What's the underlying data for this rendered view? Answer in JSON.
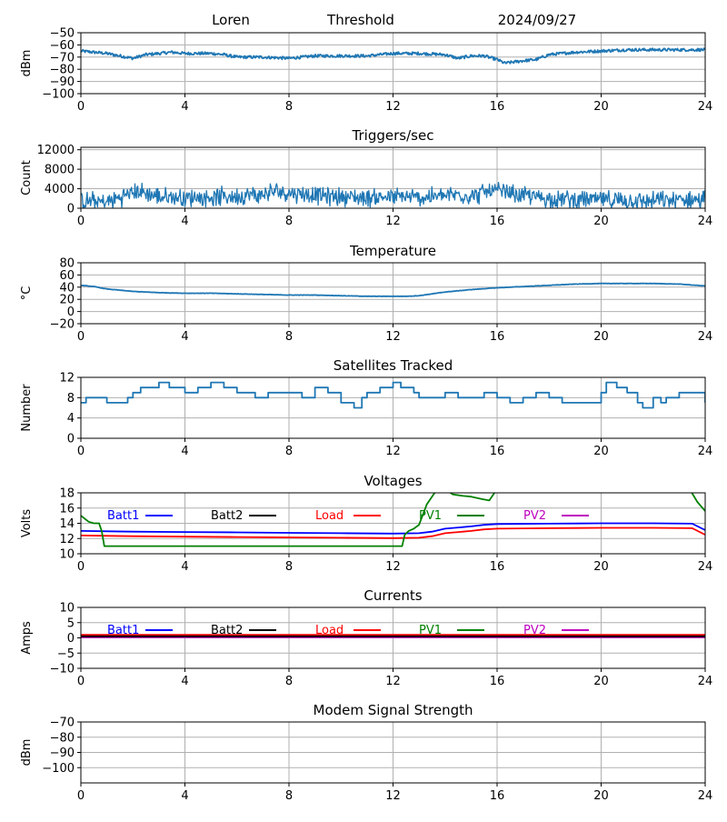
{
  "header": {
    "station": "Loren",
    "mode": "Threshold",
    "date": "2024/09/27"
  },
  "colors": {
    "line": "#1f77b4",
    "grid": "#b0b0b0",
    "batt1": "#0000ff",
    "batt2": "#000000",
    "load": "#ff0000",
    "pv1": "#008000",
    "pv2": "#bf00bf"
  },
  "chart_data": [
    {
      "type": "line",
      "title": "",
      "ylabel": "dBm",
      "xlim": [
        0,
        24
      ],
      "xticks": [
        0,
        4,
        8,
        12,
        16,
        20,
        24
      ],
      "ylim": [
        -100,
        -50
      ],
      "yticks": [
        -100,
        -90,
        -80,
        -70,
        -60,
        -50
      ],
      "grid": true,
      "noise": 1.2,
      "series": [
        {
          "color": "#1f77b4",
          "x": [
            0,
            1,
            1.5,
            2,
            2.5,
            3,
            3.5,
            4,
            5,
            5.5,
            6,
            7,
            8,
            9,
            10,
            11,
            12,
            13,
            14,
            14.5,
            15,
            15.5,
            16,
            16.3,
            17,
            17.5,
            18,
            19,
            20,
            21,
            22,
            23,
            24
          ],
          "y": [
            -65,
            -67,
            -69,
            -71,
            -68,
            -67,
            -66,
            -67,
            -67,
            -68,
            -70,
            -70,
            -71,
            -69,
            -69,
            -69,
            -67,
            -67,
            -68,
            -71,
            -69,
            -69,
            -72,
            -75,
            -73,
            -72,
            -68,
            -66,
            -65,
            -64,
            -64,
            -64,
            -64
          ]
        }
      ]
    },
    {
      "type": "line",
      "title": "Triggers/sec",
      "ylabel": "Count",
      "xlim": [
        0,
        24
      ],
      "xticks": [
        0,
        4,
        8,
        12,
        16,
        20,
        24
      ],
      "ylim": [
        0,
        12500
      ],
      "yticks": [
        0,
        4000,
        8000,
        12000
      ],
      "grid": true,
      "noise": 1400,
      "clampMin": 0,
      "series": [
        {
          "color": "#1f77b4",
          "x": [
            0,
            1,
            1.8,
            2.2,
            3,
            4,
            5,
            6,
            7,
            7.5,
            8,
            8.5,
            9,
            10,
            11,
            12,
            13,
            14,
            14.5,
            15,
            15.5,
            16,
            17,
            18,
            19,
            20,
            21,
            22,
            23,
            24
          ],
          "y": [
            1500,
            1200,
            2800,
            3500,
            2300,
            2200,
            2300,
            2500,
            2800,
            3500,
            3200,
            3000,
            2600,
            2400,
            2200,
            2300,
            2200,
            2500,
            2900,
            2400,
            3300,
            3500,
            2600,
            2000,
            1800,
            1700,
            1600,
            1500,
            1700,
            1800
          ]
        }
      ]
    },
    {
      "type": "line",
      "title": "Temperature",
      "ylabel": "°C",
      "xlim": [
        0,
        24
      ],
      "xticks": [
        0,
        4,
        8,
        12,
        16,
        20,
        24
      ],
      "ylim": [
        -20,
        80
      ],
      "yticks": [
        -20,
        0,
        20,
        40,
        60,
        80
      ],
      "grid": true,
      "noise": 0.3,
      "series": [
        {
          "color": "#1f77b4",
          "x": [
            0,
            0.5,
            1,
            2,
            3,
            4,
            5,
            6,
            7,
            8,
            9,
            10,
            11,
            12,
            12.5,
            13,
            13.5,
            14,
            15,
            16,
            17,
            18,
            19,
            20,
            21,
            22,
            23,
            24
          ],
          "y": [
            43,
            41,
            37,
            33,
            31,
            30,
            30,
            29,
            28,
            27,
            27,
            26,
            25,
            25,
            25,
            26,
            29,
            32,
            36,
            39,
            41,
            43,
            45,
            46,
            46,
            46,
            45,
            42
          ]
        }
      ]
    },
    {
      "type": "line",
      "title": "Satellites Tracked",
      "ylabel": "Number",
      "xlim": [
        0,
        24
      ],
      "xticks": [
        0,
        4,
        8,
        12,
        16,
        20,
        24
      ],
      "ylim": [
        0,
        12
      ],
      "yticks": [
        0,
        4,
        8,
        12
      ],
      "grid": true,
      "step": true,
      "series": [
        {
          "color": "#1f77b4",
          "x": [
            0,
            0.2,
            0.6,
            1,
            1.4,
            1.8,
            2,
            2.3,
            2.5,
            3,
            3.4,
            3.6,
            4,
            4.5,
            5,
            5.5,
            6,
            6.5,
            6.7,
            7.2,
            8,
            8.5,
            9,
            9.5,
            10,
            10.5,
            10.8,
            11,
            11.5,
            12,
            12.3,
            12.8,
            13,
            13.5,
            14,
            14.5,
            15,
            15.5,
            16,
            16.5,
            17,
            17.5,
            18,
            18.5,
            19,
            19.5,
            20,
            20.2,
            20.6,
            21,
            21.4,
            21.6,
            22,
            22.3,
            22.5,
            23,
            23.8,
            24
          ],
          "y": [
            7,
            8,
            8,
            7,
            7,
            8,
            9,
            10,
            10,
            11,
            10,
            10,
            9,
            10,
            11,
            10,
            9,
            9,
            8,
            9,
            9,
            8,
            10,
            9,
            7,
            6,
            8,
            9,
            10,
            11,
            10,
            9,
            8,
            8,
            9,
            8,
            8,
            9,
            8,
            7,
            8,
            9,
            8,
            7,
            7,
            7,
            9,
            11,
            10,
            9,
            7,
            6,
            8,
            7,
            8,
            9,
            9,
            7
          ]
        }
      ]
    },
    {
      "type": "line",
      "title": "Voltages",
      "ylabel": "Volts",
      "xlim": [
        0,
        24
      ],
      "xticks": [
        0,
        4,
        8,
        12,
        16,
        20,
        24
      ],
      "ylim": [
        10,
        18
      ],
      "yticks": [
        10,
        12,
        14,
        16,
        18
      ],
      "grid": true,
      "legend": [
        "Batt1",
        "Batt2",
        "Load",
        "PV1",
        "PV2"
      ],
      "series": [
        {
          "name": "Batt1",
          "color": "#0000ff",
          "x": [
            0,
            2,
            4,
            6,
            8,
            10,
            12,
            13,
            13.5,
            14,
            15,
            15.5,
            16,
            18,
            20,
            22,
            23.5,
            24
          ],
          "y": [
            13,
            12.9,
            12.85,
            12.8,
            12.75,
            12.7,
            12.65,
            12.7,
            12.9,
            13.3,
            13.6,
            13.8,
            13.9,
            13.95,
            14,
            14,
            13.95,
            13.1
          ]
        },
        {
          "name": "Load",
          "color": "#ff0000",
          "x": [
            0,
            2,
            4,
            6,
            8,
            10,
            12,
            13,
            13.5,
            14,
            15,
            15.5,
            16,
            18,
            20,
            22,
            23.5,
            24
          ],
          "y": [
            12.4,
            12.3,
            12.25,
            12.2,
            12.15,
            12.1,
            12.05,
            12.1,
            12.3,
            12.7,
            13,
            13.2,
            13.3,
            13.35,
            13.4,
            13.4,
            13.35,
            12.5
          ]
        },
        {
          "name": "PV1",
          "color": "#008000",
          "clip": true,
          "x": [
            0,
            0.3,
            0.5,
            0.6,
            0.7,
            0.8,
            0.9,
            12.35,
            12.45,
            12.6,
            12.8,
            13,
            13.3,
            13.6,
            14,
            14.3,
            14.7,
            15,
            15.4,
            15.7,
            16,
            23.4,
            23.7,
            24
          ],
          "y": [
            15,
            14.2,
            14,
            14,
            14,
            13,
            11,
            11,
            12.5,
            13,
            13.3,
            13.8,
            16.5,
            18,
            18.5,
            17.8,
            17.6,
            17.5,
            17.2,
            17,
            18.5,
            18.5,
            16.8,
            15.6
          ]
        }
      ]
    },
    {
      "type": "line",
      "title": "Currents",
      "ylabel": "Amps",
      "xlim": [
        0,
        24
      ],
      "xticks": [
        0,
        4,
        8,
        12,
        16,
        20,
        24
      ],
      "ylim": [
        -10,
        10
      ],
      "yticks": [
        -10,
        -5,
        0,
        5,
        10
      ],
      "grid": true,
      "legend": [
        "Batt1",
        "Batt2",
        "Load",
        "PV1",
        "PV2"
      ],
      "series": [
        {
          "name": "Load",
          "color": "#ff0000",
          "x": [
            0,
            24
          ],
          "y": [
            1.0,
            1.0
          ]
        },
        {
          "name": "PV2",
          "color": "#bf00bf",
          "x": [
            0,
            24
          ],
          "y": [
            0.2,
            0.2
          ]
        },
        {
          "name": "Batt2",
          "color": "#000000",
          "x": [
            0,
            24
          ],
          "y": [
            0.5,
            0.5
          ]
        }
      ]
    },
    {
      "type": "line",
      "title": "Modem Signal Strength",
      "ylabel": "dBm",
      "xlim": [
        0,
        24
      ],
      "xticks": [
        0,
        4,
        8,
        12,
        16,
        20,
        24
      ],
      "ylim": [
        -110,
        -70
      ],
      "yticks": [
        -100,
        -90,
        -80,
        -70
      ],
      "grid": true,
      "series": []
    }
  ]
}
